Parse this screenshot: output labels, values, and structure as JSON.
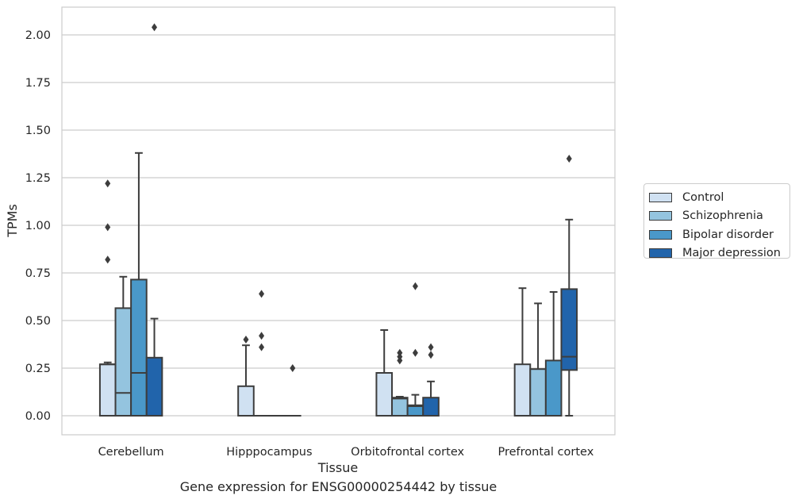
{
  "chart_data": {
    "type": "boxplot",
    "title": "",
    "caption": "Gene expression for ENSG00000254442 by tissue",
    "xlabel": "Tissue",
    "ylabel": "TPMs",
    "ylim": [
      -0.1,
      2.15
    ],
    "yticks": [
      "0.00",
      "0.25",
      "0.50",
      "0.75",
      "1.00",
      "1.25",
      "1.50",
      "1.75",
      "2.00"
    ],
    "grid": "horizontal",
    "legend_position": "right",
    "categories": [
      "Cerebellum",
      "Hipppocampus",
      "Orbitofrontal cortex",
      "Prefrontal cortex"
    ],
    "series": [
      {
        "name": "Control",
        "color": "#d0e1f2",
        "boxes": [
          {
            "q1": 0.0,
            "median": 0.27,
            "q3": 0.27,
            "whisker_low": 0.0,
            "whisker_high": 0.28,
            "outliers": [
              0.82,
              0.99,
              1.22
            ]
          },
          {
            "q1": 0.0,
            "median": 0.0,
            "q3": 0.155,
            "whisker_low": 0.0,
            "whisker_high": 0.37,
            "outliers": [
              0.4
            ]
          },
          {
            "q1": 0.0,
            "median": 0.0,
            "q3": 0.225,
            "whisker_low": 0.0,
            "whisker_high": 0.45,
            "outliers": []
          },
          {
            "q1": 0.0,
            "median": 0.0,
            "q3": 0.27,
            "whisker_low": 0.0,
            "whisker_high": 0.67,
            "outliers": []
          }
        ]
      },
      {
        "name": "Schizophrenia",
        "color": "#94c4df",
        "boxes": [
          {
            "q1": 0.0,
            "median": 0.12,
            "q3": 0.565,
            "whisker_low": 0.0,
            "whisker_high": 0.73,
            "outliers": []
          },
          {
            "q1": 0.0,
            "median": 0.0,
            "q3": 0.0,
            "whisker_low": 0.0,
            "whisker_high": 0.0,
            "outliers": [
              0.36,
              0.42,
              0.64
            ]
          },
          {
            "q1": 0.0,
            "median": 0.09,
            "q3": 0.095,
            "whisker_low": 0.0,
            "whisker_high": 0.1,
            "outliers": [
              0.29,
              0.31,
              0.33
            ]
          },
          {
            "q1": 0.0,
            "median": 0.0,
            "q3": 0.245,
            "whisker_low": 0.0,
            "whisker_high": 0.59,
            "outliers": []
          }
        ]
      },
      {
        "name": "Bipolar disorder",
        "color": "#4a98c9",
        "boxes": [
          {
            "q1": 0.0,
            "median": 0.225,
            "q3": 0.715,
            "whisker_low": 0.0,
            "whisker_high": 1.38,
            "outliers": []
          },
          {
            "q1": 0.0,
            "median": 0.0,
            "q3": 0.0,
            "whisker_low": 0.0,
            "whisker_high": 0.0,
            "outliers": []
          },
          {
            "q1": 0.0,
            "median": 0.05,
            "q3": 0.055,
            "whisker_low": 0.0,
            "whisker_high": 0.11,
            "outliers": [
              0.33,
              0.68
            ]
          },
          {
            "q1": 0.0,
            "median": 0.0,
            "q3": 0.29,
            "whisker_low": 0.0,
            "whisker_high": 0.65,
            "outliers": []
          }
        ]
      },
      {
        "name": "Major depression",
        "color": "#2164ab",
        "boxes": [
          {
            "q1": 0.0,
            "median": 0.0,
            "q3": 0.305,
            "whisker_low": 0.0,
            "whisker_high": 0.51,
            "outliers": [
              2.04
            ]
          },
          {
            "q1": 0.0,
            "median": 0.0,
            "q3": 0.0,
            "whisker_low": 0.0,
            "whisker_high": 0.0,
            "outliers": [
              0.25
            ]
          },
          {
            "q1": 0.0,
            "median": 0.0,
            "q3": 0.095,
            "whisker_low": 0.0,
            "whisker_high": 0.18,
            "outliers": [
              0.32,
              0.36
            ]
          },
          {
            "q1": 0.24,
            "median": 0.31,
            "q3": 0.665,
            "whisker_low": 0.0,
            "whisker_high": 1.03,
            "outliers": [
              1.35
            ]
          }
        ]
      }
    ]
  }
}
